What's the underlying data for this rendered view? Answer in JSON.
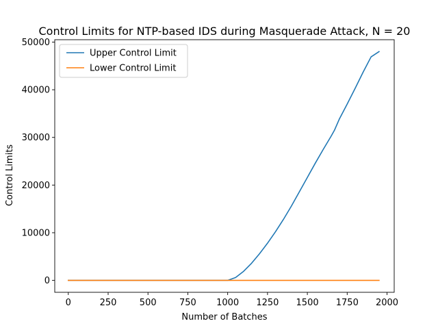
{
  "chart_data": {
    "type": "line",
    "title": "Control Limits for NTP-based IDS during Masquerade Attack, N = 20",
    "xlabel": "Number of Batches",
    "ylabel": "Control Limits",
    "xlim": [
      -85,
      2045
    ],
    "ylim": [
      -2500,
      50500
    ],
    "xticks": [
      0,
      250,
      500,
      750,
      1000,
      1250,
      1500,
      1750,
      2000
    ],
    "xtick_labels": [
      "0",
      "250",
      "500",
      "750",
      "1000",
      "1250",
      "1500",
      "1750",
      "2000"
    ],
    "yticks": [
      0,
      10000,
      20000,
      30000,
      40000,
      50000
    ],
    "ytick_labels": [
      "0",
      "10000",
      "20000",
      "30000",
      "40000",
      "50000"
    ],
    "grid": false,
    "legend_position": "upper-left",
    "series": [
      {
        "name": "Upper Control Limit",
        "color": "#1f77b4",
        "x": [
          0,
          250,
          500,
          750,
          1000,
          1050,
          1100,
          1150,
          1200,
          1250,
          1300,
          1350,
          1400,
          1450,
          1500,
          1550,
          1600,
          1650,
          1670,
          1700,
          1750,
          1800,
          1850,
          1900,
          1950
        ],
        "y": [
          0,
          0,
          0,
          0,
          0,
          600,
          1900,
          3600,
          5600,
          7800,
          10200,
          12800,
          15600,
          18600,
          21600,
          24600,
          27500,
          30300,
          31500,
          33800,
          37000,
          40300,
          43700,
          46900,
          48000
        ]
      },
      {
        "name": "Lower Control Limit",
        "color": "#ff7f0e",
        "x": [
          0,
          250,
          500,
          750,
          1000,
          1250,
          1500,
          1750,
          1950
        ],
        "y": [
          0,
          0,
          0,
          0,
          0,
          0,
          0,
          0,
          0
        ]
      }
    ]
  }
}
